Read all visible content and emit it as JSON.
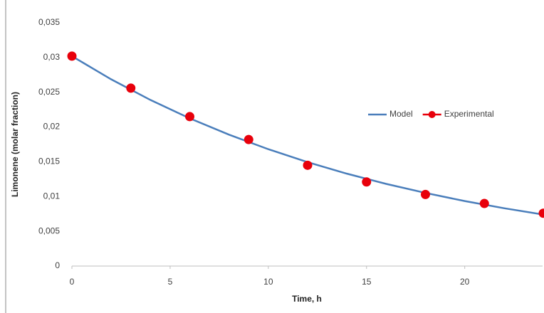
{
  "chart_data": {
    "type": "line",
    "xlabel": "Time, h",
    "ylabel": "Limonene (molar fraction)",
    "xlim": [
      0,
      24
    ],
    "xticks": [
      0,
      5,
      10,
      15,
      20
    ],
    "ylim": [
      0,
      0.035
    ],
    "yticks": [
      0,
      {
        "value": 0.005,
        "label": "0,005"
      },
      {
        "value": 0.01,
        "label": "0,01"
      },
      {
        "value": 0.015,
        "label": "0,015"
      },
      {
        "value": 0.02,
        "label": "0,02"
      },
      {
        "value": 0.025,
        "label": "0,025"
      },
      {
        "value": 0.03,
        "label": "0,03"
      },
      {
        "value": 0.035,
        "label": "0,035"
      }
    ],
    "grid": false,
    "legend": "right",
    "series": [
      {
        "name": "Model",
        "color": "#4a7ebb",
        "marker": false,
        "x": [
          0,
          2,
          4,
          6,
          8,
          10,
          12,
          14,
          16,
          18,
          20,
          22,
          24
        ],
        "values": [
          0.0302,
          0.02686,
          0.02389,
          0.02125,
          0.0189,
          0.01681,
          0.01495,
          0.01329,
          0.01182,
          0.01052,
          0.00935,
          0.00832,
          0.0074
        ]
      },
      {
        "name": "Experimental",
        "color": "#e8000b",
        "marker": true,
        "x": [
          0,
          3,
          6,
          9,
          12,
          15,
          18,
          21,
          24
        ],
        "values": [
          0.0302,
          0.0256,
          0.0215,
          0.0182,
          0.0145,
          0.0121,
          0.0103,
          0.009,
          0.0076
        ]
      }
    ]
  }
}
